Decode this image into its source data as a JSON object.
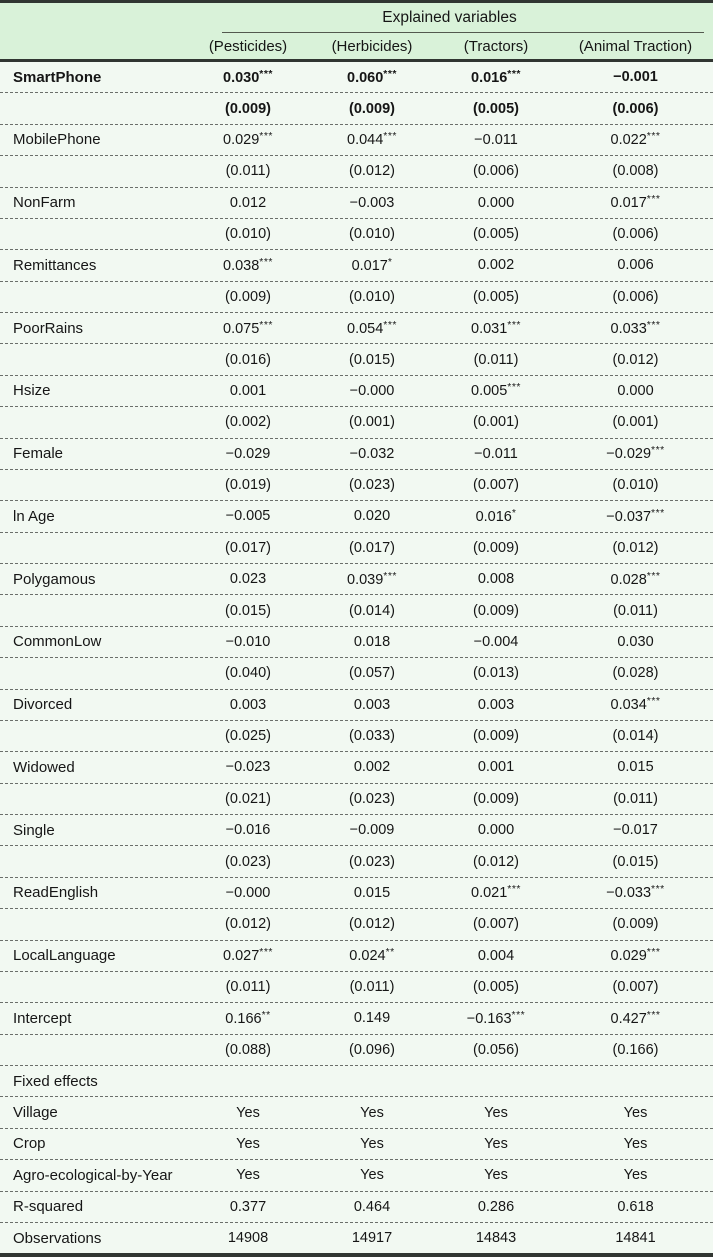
{
  "colors": {
    "header_bg": "#d9f2d9",
    "body_bg": "#f2f9f2",
    "rule_dark": "#313632",
    "dashed_rule": "#6b6f6b",
    "text": "#161616"
  },
  "table": {
    "header": {
      "group_title": "Explained variables",
      "columns": [
        "(Pesticides)",
        "(Herbicides)",
        "(Tractors)",
        "(Animal Traction)"
      ]
    },
    "rows": [
      {
        "label": "SmartPhone",
        "bold": true,
        "values": [
          "0.030***",
          "0.060***",
          "0.016***",
          "−0.001"
        ],
        "se": [
          "(0.009)",
          "(0.009)",
          "(0.005)",
          "(0.006)"
        ]
      },
      {
        "label": "MobilePhone",
        "bold": false,
        "values": [
          "0.029***",
          "0.044***",
          "−0.011",
          "0.022***"
        ],
        "se": [
          "(0.011)",
          "(0.012)",
          "(0.006)",
          "(0.008)"
        ]
      },
      {
        "label": "NonFarm",
        "bold": false,
        "values": [
          "0.012",
          "−0.003",
          "0.000",
          "0.017***"
        ],
        "se": [
          "(0.010)",
          "(0.010)",
          "(0.005)",
          "(0.006)"
        ]
      },
      {
        "label": "Remittances",
        "bold": false,
        "values": [
          "0.038***",
          "0.017*",
          "0.002",
          "0.006"
        ],
        "se": [
          "(0.009)",
          "(0.010)",
          "(0.005)",
          "(0.006)"
        ]
      },
      {
        "label": "PoorRains",
        "bold": false,
        "values": [
          "0.075***",
          "0.054***",
          "0.031***",
          "0.033***"
        ],
        "se": [
          "(0.016)",
          "(0.015)",
          "(0.011)",
          "(0.012)"
        ]
      },
      {
        "label": "Hsize",
        "bold": false,
        "values": [
          "0.001",
          "−0.000",
          "0.005***",
          "0.000"
        ],
        "se": [
          "(0.002)",
          "(0.001)",
          "(0.001)",
          "(0.001)"
        ]
      },
      {
        "label": "Female",
        "bold": false,
        "values": [
          "−0.029",
          "−0.032",
          "−0.011",
          "−0.029***"
        ],
        "se": [
          "(0.019)",
          "(0.023)",
          "(0.007)",
          "(0.010)"
        ]
      },
      {
        "label": "ln Age",
        "bold": false,
        "values": [
          "−0.005",
          "0.020",
          "0.016*",
          "−0.037***"
        ],
        "se": [
          "(0.017)",
          "(0.017)",
          "(0.009)",
          "(0.012)"
        ]
      },
      {
        "label": "Polygamous",
        "bold": false,
        "values": [
          "0.023",
          "0.039***",
          "0.008",
          "0.028***"
        ],
        "se": [
          "(0.015)",
          "(0.014)",
          "(0.009)",
          "(0.011)"
        ]
      },
      {
        "label": "CommonLow",
        "bold": false,
        "values": [
          "−0.010",
          "0.018",
          "−0.004",
          "0.030"
        ],
        "se": [
          "(0.040)",
          "(0.057)",
          "(0.013)",
          "(0.028)"
        ]
      },
      {
        "label": "Divorced",
        "bold": false,
        "values": [
          "0.003",
          "0.003",
          "0.003",
          "0.034***"
        ],
        "se": [
          "(0.025)",
          "(0.033)",
          "(0.009)",
          "(0.014)"
        ]
      },
      {
        "label": "Widowed",
        "bold": false,
        "values": [
          "−0.023",
          "0.002",
          "0.001",
          "0.015"
        ],
        "se": [
          "(0.021)",
          "(0.023)",
          "(0.009)",
          "(0.011)"
        ]
      },
      {
        "label": "Single",
        "bold": false,
        "values": [
          "−0.016",
          "−0.009",
          "0.000",
          "−0.017"
        ],
        "se": [
          "(0.023)",
          "(0.023)",
          "(0.012)",
          "(0.015)"
        ]
      },
      {
        "label": "ReadEnglish",
        "bold": false,
        "values": [
          "−0.000",
          "0.015",
          "0.021***",
          "−0.033***"
        ],
        "se": [
          "(0.012)",
          "(0.012)",
          "(0.007)",
          "(0.009)"
        ]
      },
      {
        "label": "LocalLanguage",
        "bold": false,
        "values": [
          "0.027***",
          "0.024**",
          "0.004",
          "0.029***"
        ],
        "se": [
          "(0.011)",
          "(0.011)",
          "(0.005)",
          "(0.007)"
        ]
      },
      {
        "label": "Intercept",
        "bold": false,
        "values": [
          "0.166**",
          "0.149",
          "−0.163***",
          "0.427***"
        ],
        "se": [
          "(0.088)",
          "(0.096)",
          "(0.056)",
          "(0.166)"
        ]
      }
    ],
    "fixed_effects": {
      "section_label": "Fixed effects",
      "rows": [
        {
          "label": "Village",
          "values": [
            "Yes",
            "Yes",
            "Yes",
            "Yes"
          ]
        },
        {
          "label": "Crop",
          "values": [
            "Yes",
            "Yes",
            "Yes",
            "Yes"
          ]
        },
        {
          "label": "Agro-ecological-by-Year",
          "values": [
            "Yes",
            "Yes",
            "Yes",
            "Yes"
          ]
        }
      ]
    },
    "stats": [
      {
        "label": "R-squared",
        "values": [
          "0.377",
          "0.464",
          "0.286",
          "0.618"
        ]
      },
      {
        "label": "Observations",
        "values": [
          "14908",
          "14917",
          "14843",
          "14841"
        ]
      }
    ]
  }
}
